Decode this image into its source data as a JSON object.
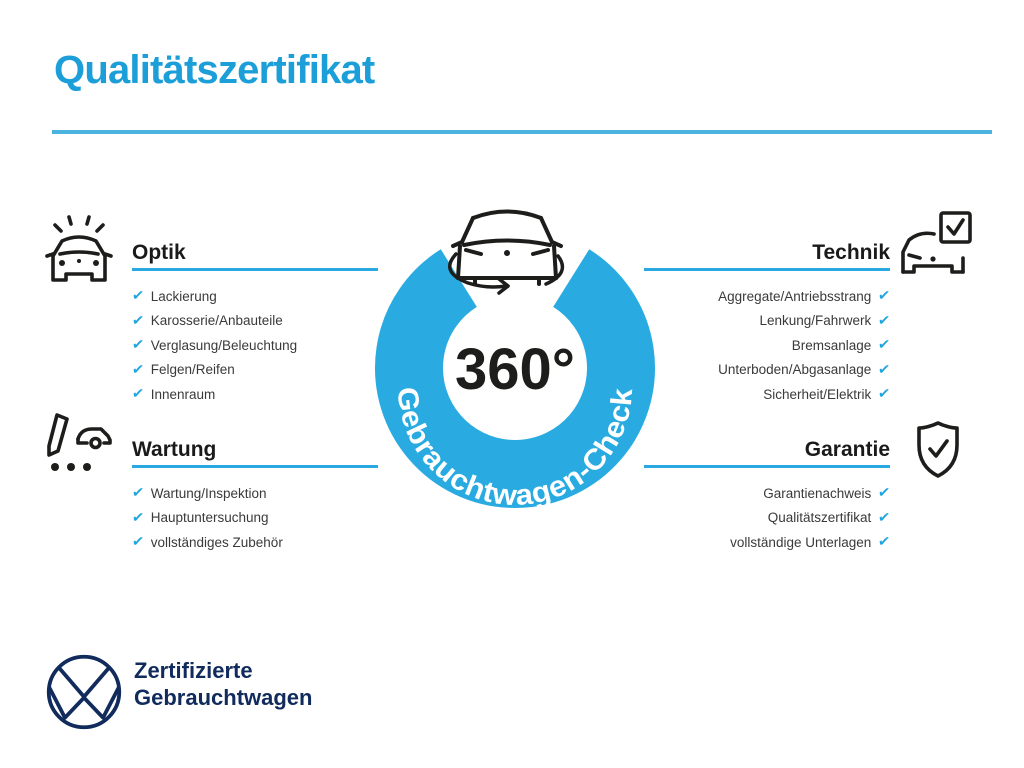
{
  "title": "Qualitätszertifikat",
  "checkmark": "✔",
  "colors": {
    "accent_blue": "#1fa3dc",
    "ring_blue": "#29abe2",
    "navy": "#102b5c",
    "item_text": "#3a3a3a",
    "icon_black": "#1d1d1b"
  },
  "center": {
    "degree_label": "360°",
    "ring_label": "Gebrauchtwagen-Check"
  },
  "sections": {
    "optik": {
      "title": "Optik",
      "items": [
        "Lackierung",
        "Karosserie/Anbauteile",
        "Verglasung/Beleuchtung",
        "Felgen/Reifen",
        "Innenraum"
      ]
    },
    "wartung": {
      "title": "Wartung",
      "items": [
        "Wartung/Inspektion",
        "Hauptuntersuchung",
        "vollständiges Zubehör"
      ]
    },
    "technik": {
      "title": "Technik",
      "items": [
        "Aggregate/Antriebsstrang",
        "Lenkung/Fahrwerk",
        "Bremsanlage",
        "Unterboden/Abgasanlage",
        "Sicherheit/Elektrik"
      ]
    },
    "garantie": {
      "title": "Garantie",
      "items": [
        "Garantienachweis",
        "Qualitätszertifikat",
        "vollständige Unterlagen"
      ]
    }
  },
  "footer": {
    "line1": "Zertifizierte",
    "line2": "Gebrauchtwagen"
  }
}
